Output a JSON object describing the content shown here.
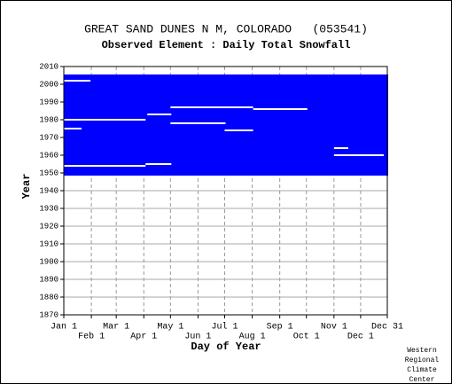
{
  "chart_data": {
    "type": "raster",
    "title": "GREAT SAND DUNES N M, COLORADO   (053541)",
    "subtitle": "Observed Element : Daily Total Snowfall",
    "x_label": "Day of Year",
    "y_label": "Year",
    "color": "#0000ff",
    "blocks": [
      {
        "years": [
          1949,
          2005
        ],
        "days": [
          1,
          365
        ]
      }
    ],
    "gaps": [
      {
        "year": 2002,
        "days": [
          1,
          30
        ]
      },
      {
        "year": 1987,
        "days": [
          121,
          213
        ]
      },
      {
        "year": 1986,
        "days": [
          214,
          274
        ]
      },
      {
        "year": 1983,
        "days": [
          95,
          121
        ]
      },
      {
        "year": 1980,
        "days": [
          1,
          92
        ]
      },
      {
        "year": 1978,
        "days": [
          121,
          182
        ]
      },
      {
        "year": 1975,
        "days": [
          1,
          20
        ]
      },
      {
        "year": 1974,
        "days": [
          182,
          213
        ]
      },
      {
        "year": 1964,
        "days": [
          305,
          320
        ]
      },
      {
        "year": 1960,
        "days": [
          305,
          360
        ]
      },
      {
        "year": 1955,
        "days": [
          93,
          121
        ]
      },
      {
        "year": 1954,
        "days": [
          1,
          92
        ]
      }
    ],
    "xlim": [
      1,
      365
    ],
    "xticks": [
      {
        "value": 1,
        "label": "Jan 1"
      },
      {
        "value": 32,
        "label": "Feb 1"
      },
      {
        "value": 60,
        "label": "Mar 1"
      },
      {
        "value": 91,
        "label": "Apr 1"
      },
      {
        "value": 121,
        "label": "May 1"
      },
      {
        "value": 152,
        "label": "Jun 1"
      },
      {
        "value": 182,
        "label": "Jul 1"
      },
      {
        "value": 213,
        "label": "Aug 1"
      },
      {
        "value": 244,
        "label": "Sep 1"
      },
      {
        "value": 274,
        "label": "Oct 1"
      },
      {
        "value": 305,
        "label": "Nov 1"
      },
      {
        "value": 335,
        "label": "Dec 1"
      },
      {
        "value": 365,
        "label": "Dec 31"
      }
    ],
    "ylim": [
      1870,
      2010
    ],
    "yticks": [
      1870,
      1880,
      1890,
      1900,
      1910,
      1920,
      1930,
      1940,
      1950,
      1960,
      1970,
      1980,
      1990,
      2000,
      2010
    ],
    "grid": true,
    "credit": [
      "Western",
      "Regional",
      "Climate",
      "Center"
    ]
  }
}
